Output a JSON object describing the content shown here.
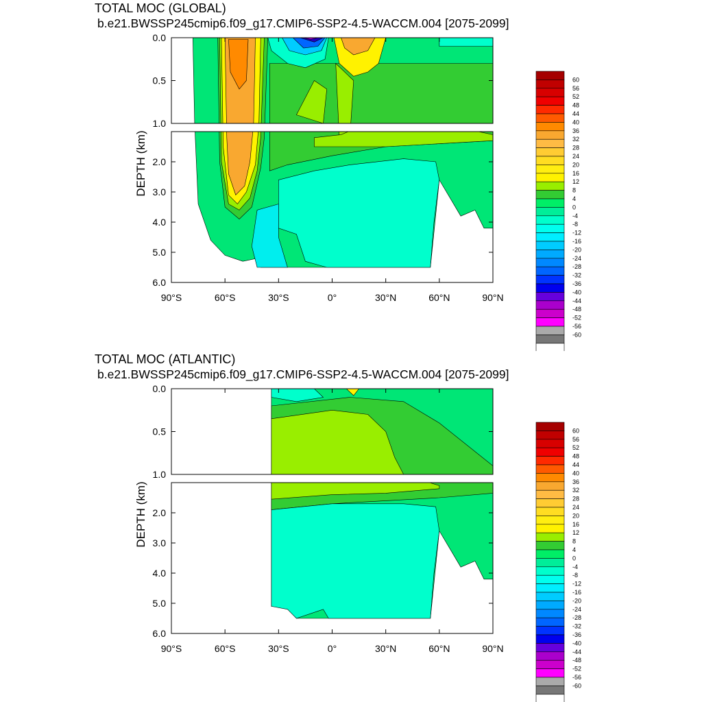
{
  "panels": [
    {
      "id": "global",
      "title": "TOTAL MOC (GLOBAL)",
      "subtitle": "b.e21.BWSSP245cmip6.f09_g17.CMIP6-SSP2-4.5-WACCM.004 [2075-2099]"
    },
    {
      "id": "atlantic",
      "title": "TOTAL MOC (ATLANTIC)",
      "subtitle": "b.e21.BWSSP245cmip6.f09_g17.CMIP6-SSP2-4.5-WACCM.004 [2075-2099]"
    }
  ],
  "chart_data": [
    {
      "type": "heatmap",
      "title": "TOTAL MOC (GLOBAL)",
      "subtitle": "b.e21.BWSSP245cmip6.f09_g17.CMIP6-SSP2-4.5-WACCM.004 [2075-2099]",
      "xlabel": "",
      "ylabel": "DEPTH (km)",
      "xlim": [
        -90,
        90
      ],
      "ylim": [
        6.0,
        0.0
      ],
      "x_ticks": [
        -90,
        -60,
        -30,
        0,
        30,
        60,
        90
      ],
      "x_tick_labels": [
        "90°S",
        "60°S",
        "30°S",
        "0°",
        "30°N",
        "60°N",
        "90°N"
      ],
      "y_ticks_upper": [
        0.0,
        0.5,
        1.0
      ],
      "y_tick_labels_upper": [
        "0.0",
        "0.5",
        "1.0"
      ],
      "y_ticks_lower": [
        2.0,
        3.0,
        4.0,
        5.0,
        6.0
      ],
      "y_tick_labels_lower": [
        "2.0",
        "3.0",
        "4.0",
        "5.0",
        "6.0"
      ],
      "upper_depth_range": [
        0.0,
        1.0
      ],
      "lower_depth_range": [
        1.0,
        6.0
      ],
      "contour_levels": [
        -60,
        -56,
        -52,
        -48,
        -44,
        -40,
        -36,
        -32,
        -28,
        -24,
        -20,
        -16,
        -12,
        -8,
        -4,
        0,
        4,
        8,
        12,
        16,
        20,
        24,
        28,
        32,
        36,
        40,
        44,
        48,
        52,
        56,
        60
      ],
      "features": [
        {
          "type": "positive_cell",
          "lat_range": [
            -60,
            -40
          ],
          "depth_range": [
            0.0,
            3.5
          ],
          "max": 34
        },
        {
          "type": "negative_cell",
          "lat_range": [
            -25,
            0
          ],
          "depth_range": [
            0.0,
            0.2
          ],
          "min": -52
        },
        {
          "type": "positive_cell",
          "lat_range": [
            2,
            25
          ],
          "depth_range": [
            0.0,
            0.25
          ],
          "max": 30
        },
        {
          "type": "negative_cell",
          "lat_range": [
            -30,
            60
          ],
          "depth_range": [
            2.0,
            5.5
          ],
          "min": -6
        }
      ]
    },
    {
      "type": "heatmap",
      "title": "TOTAL MOC (ATLANTIC)",
      "subtitle": "b.e21.BWSSP245cmip6.f09_g17.CMIP6-SSP2-4.5-WACCM.004 [2075-2099]",
      "xlabel": "",
      "ylabel": "DEPTH (km)",
      "xlim": [
        -90,
        90
      ],
      "ylim": [
        6.0,
        0.0
      ],
      "x_ticks": [
        -90,
        -60,
        -30,
        0,
        30,
        60,
        90
      ],
      "x_tick_labels": [
        "90°S",
        "60°S",
        "30°S",
        "0°",
        "30°N",
        "60°N",
        "90°N"
      ],
      "y_ticks_upper": [
        0.0,
        0.5,
        1.0
      ],
      "y_tick_labels_upper": [
        "0.0",
        "0.5",
        "1.0"
      ],
      "y_ticks_lower": [
        2.0,
        3.0,
        4.0,
        5.0,
        6.0
      ],
      "y_tick_labels_lower": [
        "2.0",
        "3.0",
        "4.0",
        "5.0",
        "6.0"
      ],
      "upper_depth_range": [
        0.0,
        1.0
      ],
      "lower_depth_range": [
        1.0,
        6.0
      ],
      "contour_levels": [
        -60,
        -56,
        -52,
        -48,
        -44,
        -40,
        -36,
        -32,
        -28,
        -24,
        -20,
        -16,
        -12,
        -8,
        -4,
        0,
        4,
        8,
        12,
        16,
        20,
        24,
        28,
        32,
        36,
        40,
        44,
        48,
        52,
        56,
        60
      ],
      "features": [
        {
          "type": "positive_cell",
          "lat_range": [
            -34,
            60
          ],
          "depth_range": [
            0.1,
            1.3
          ],
          "max": 14
        },
        {
          "type": "negative_cell",
          "lat_range": [
            -34,
            60
          ],
          "depth_range": [
            1.8,
            5.5
          ],
          "min": -6
        }
      ]
    }
  ],
  "colorbar": {
    "labels": [
      "60",
      "56",
      "52",
      "48",
      "44",
      "40",
      "36",
      "32",
      "28",
      "24",
      "20",
      "16",
      "12",
      "8",
      "4",
      "0",
      "-4",
      "-8",
      "-12",
      "-16",
      "-20",
      "-24",
      "-28",
      "-32",
      "-36",
      "-40",
      "-44",
      "-48",
      "-52",
      "-56",
      "-60"
    ],
    "colors": [
      "#a50000",
      "#c00000",
      "#d80000",
      "#f00000",
      "#ff2a00",
      "#ff5a00",
      "#ff8a00",
      "#f9a830",
      "#ffbb44",
      "#ffcc33",
      "#ffdd22",
      "#ffee11",
      "#fff200",
      "#99ee00",
      "#33cc33",
      "#00ee66",
      "#00ee99",
      "#00ffcc",
      "#00ffee",
      "#00eeff",
      "#00ccff",
      "#00aaff",
      "#0088ff",
      "#0066ff",
      "#0033ff",
      "#0000ee",
      "#6600dd",
      "#aa00cc",
      "#cc00cc",
      "#ff00ff",
      "#aaaaaa",
      "#777777",
      "#ffffff"
    ]
  },
  "colors": {
    "zero_band": "#00e676",
    "weak_positive": "#33cc33",
    "positive_8": "#99ee00",
    "yellow": "#fff200",
    "orange": "#f9a830",
    "cyan_neg": "#00ffcc",
    "cyan_neg2": "#00eeee",
    "deep_neg": "#2000c0",
    "magenta": "#aa00cc"
  }
}
